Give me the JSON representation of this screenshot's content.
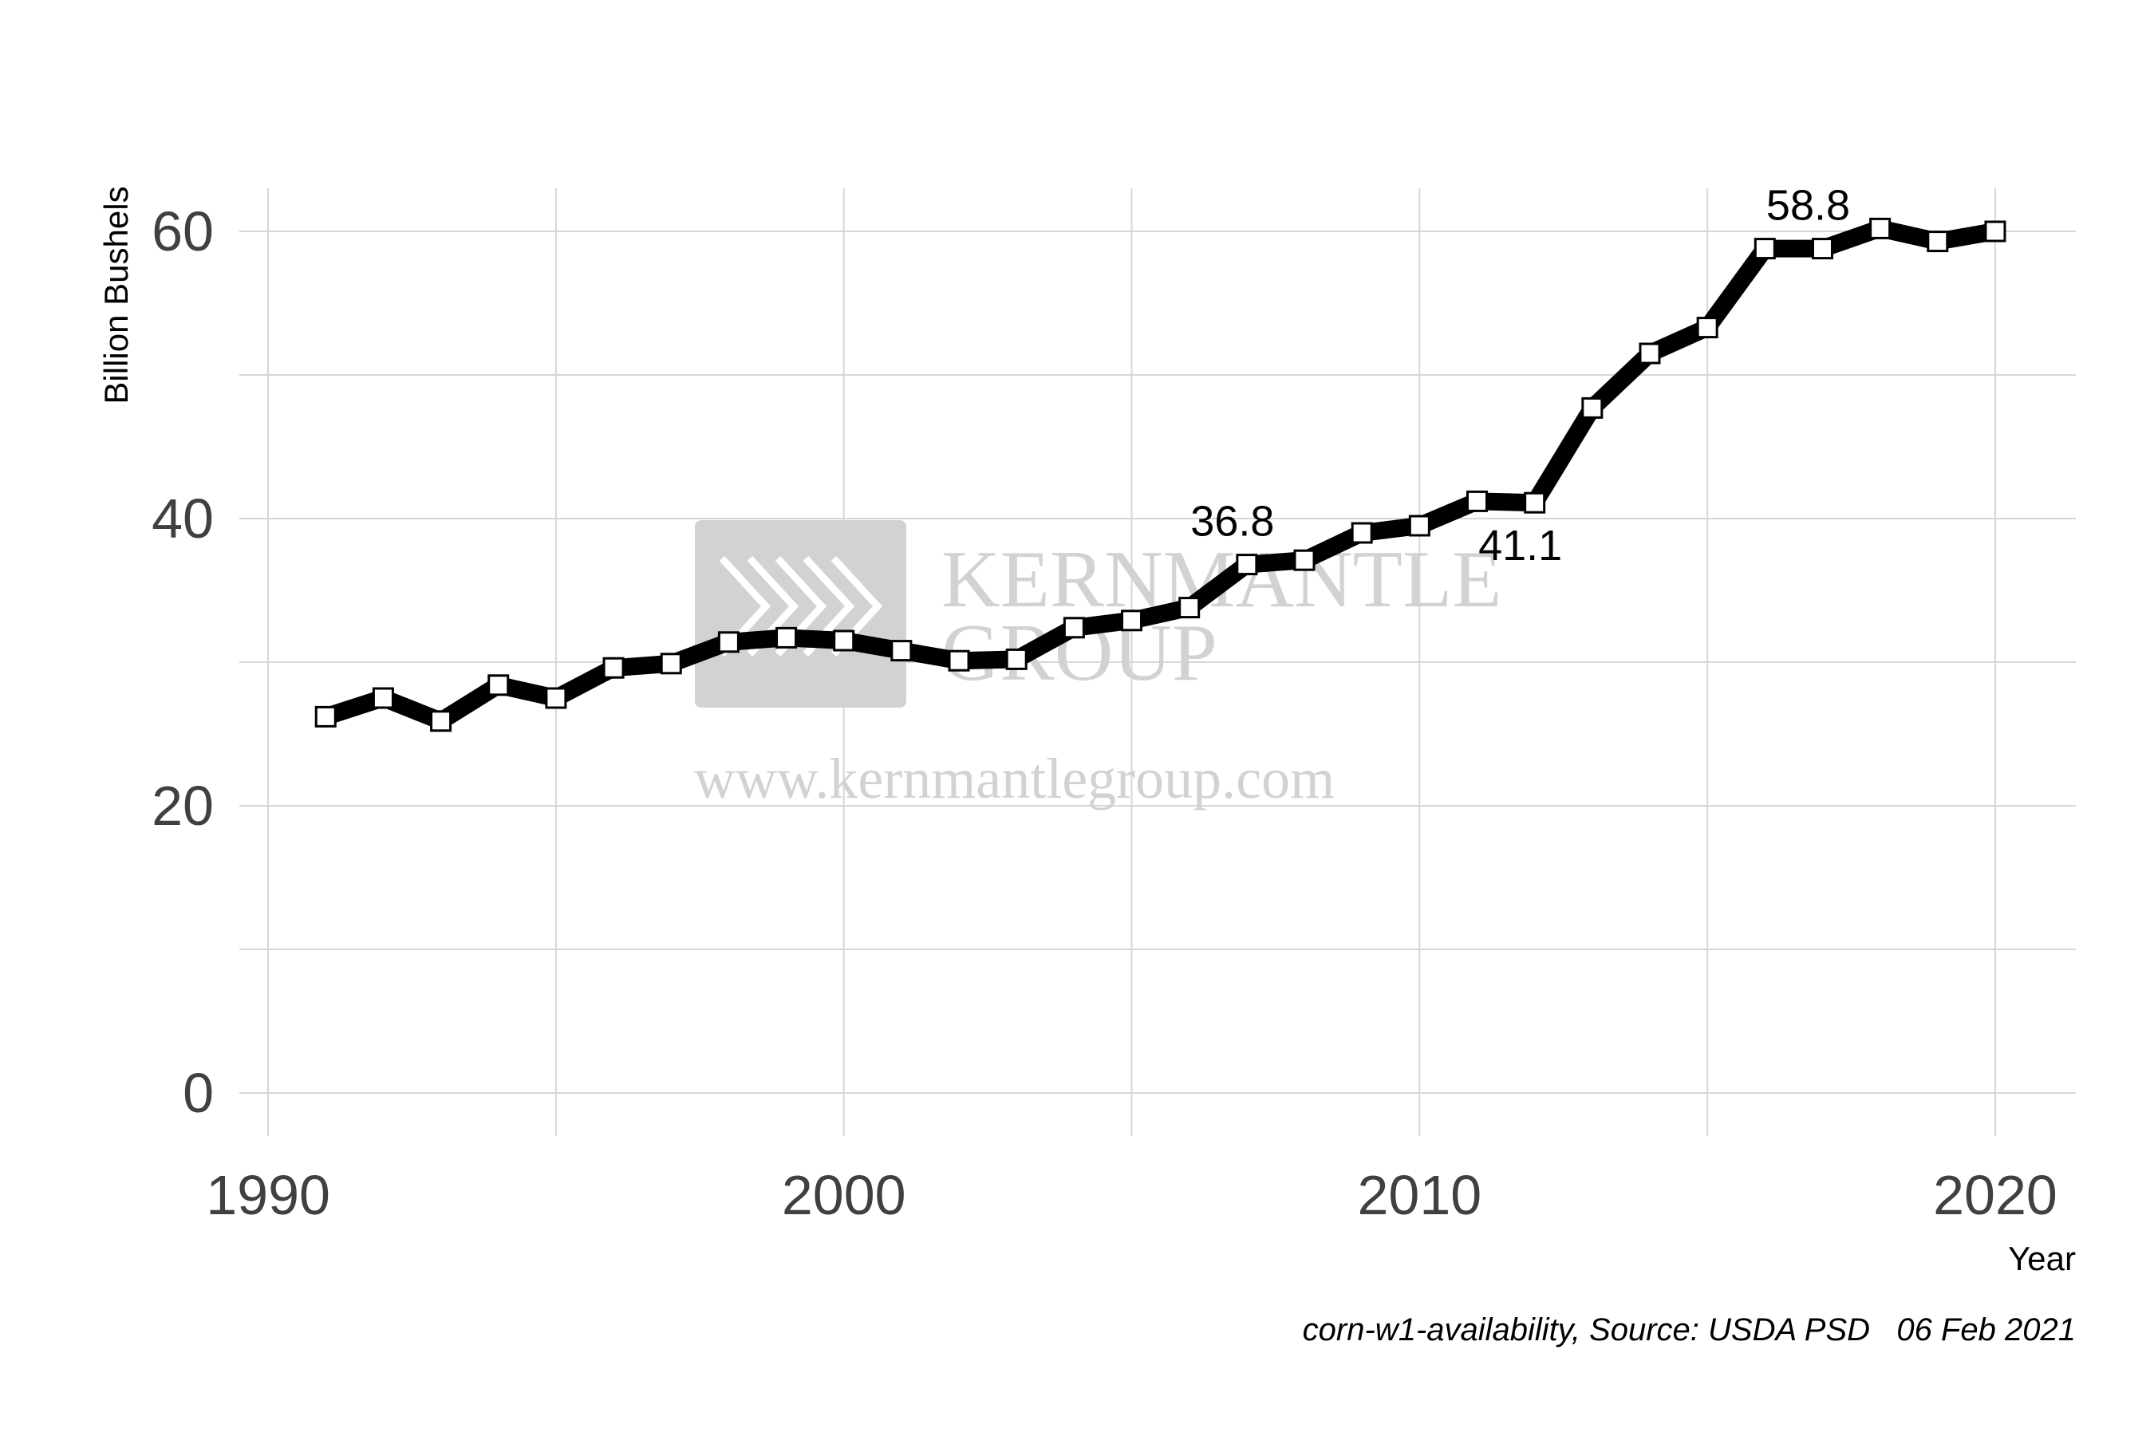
{
  "chart_data": {
    "type": "line",
    "title": "",
    "xlabel": "Year",
    "ylabel": "Billion Bushels",
    "caption": "corn-w1-availability, Source: USDA PSD   06 Feb 2021",
    "xlim": [
      1989.5,
      2021.4
    ],
    "ylim": [
      -3,
      63
    ],
    "x_ticks": [
      1990,
      2000,
      2010,
      2020
    ],
    "x_tick_labels": [
      "1990",
      "2000",
      "2010",
      "2020"
    ],
    "y_ticks": [
      0,
      20,
      40,
      60
    ],
    "y_tick_labels": [
      "0",
      "20",
      "40",
      "60"
    ],
    "grid": true,
    "line_color": "#000000",
    "marker_fill": "#ffffff",
    "series": [
      {
        "x": [
          1991,
          1992,
          1993,
          1994,
          1995,
          1996,
          1997,
          1998,
          1999,
          2000,
          2001,
          2002,
          2003,
          2004,
          2005,
          2006,
          2007,
          2008,
          2009,
          2010,
          2011,
          2012,
          2013,
          2014,
          2015,
          2016,
          2017,
          2018,
          2019,
          2020
        ],
        "values": [
          26.2,
          27.5,
          25.9,
          28.4,
          27.5,
          29.6,
          29.9,
          31.4,
          31.7,
          31.5,
          30.8,
          30.1,
          30.2,
          32.4,
          32.9,
          33.8,
          36.8,
          37.1,
          39.0,
          39.5,
          41.2,
          41.1,
          47.7,
          51.5,
          53.3,
          58.8,
          58.8,
          60.2,
          59.3,
          60.0
        ]
      }
    ],
    "annotations": [
      {
        "text": "36.8",
        "x": 2007,
        "y": 36.8,
        "placement": "above"
      },
      {
        "text": "41.1",
        "x": 2012,
        "y": 41.1,
        "placement": "below"
      },
      {
        "text": "58.8",
        "x": 2017,
        "y": 58.8,
        "placement": "above"
      }
    ]
  },
  "watermark": {
    "name_line1": "KERNMANTLE",
    "name_line2": "GROUP",
    "url": "www.kernmantlegroup.com",
    "color": "#d2d2d2"
  }
}
